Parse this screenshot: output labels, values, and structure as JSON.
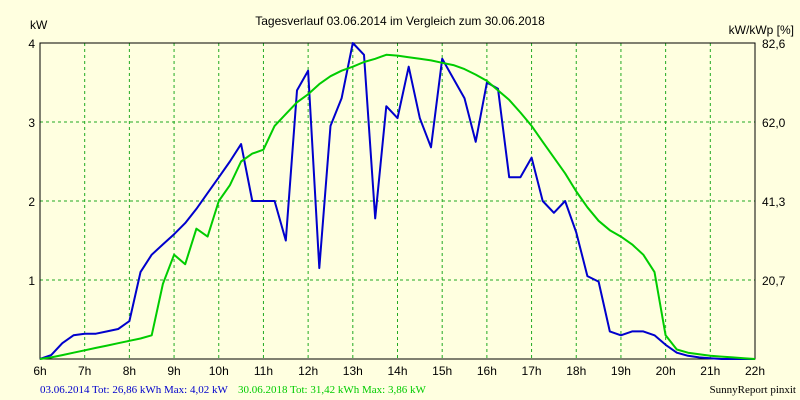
{
  "chart_data": {
    "type": "line",
    "title": "Tagesverlauf 03.06.2014 im Vergleich zum 30.06.2018",
    "ylabel_left": "kW",
    "ylabel_right": "kW/kWp [%]",
    "ylim": [
      0,
      4
    ],
    "xlim": [
      6,
      22
    ],
    "x_ticks": [
      "6h",
      "7h",
      "8h",
      "9h",
      "10h",
      "11h",
      "12h",
      "13h",
      "14h",
      "15h",
      "16h",
      "17h",
      "18h",
      "19h",
      "20h",
      "21h",
      "22h"
    ],
    "y_ticks_left": [
      "1",
      "2",
      "3",
      "4"
    ],
    "y_ticks_right": [
      "20,7",
      "41,3",
      "62,0",
      "82,6"
    ],
    "grid": true,
    "series": [
      {
        "name": "03.06.2014",
        "color": "#0000cc",
        "x": [
          6,
          6.25,
          6.5,
          6.75,
          7,
          7.25,
          7.5,
          7.75,
          8,
          8.25,
          8.5,
          8.75,
          9,
          9.25,
          9.5,
          9.75,
          10,
          10.25,
          10.5,
          10.75,
          11,
          11.25,
          11.5,
          11.75,
          12,
          12.25,
          12.5,
          12.75,
          13,
          13.25,
          13.5,
          13.75,
          14,
          14.25,
          14.5,
          14.75,
          15,
          15.25,
          15.5,
          15.75,
          16,
          16.25,
          16.5,
          16.75,
          17,
          17.25,
          17.5,
          17.75,
          18,
          18.25,
          18.5,
          18.75,
          19,
          19.25,
          19.5,
          19.75,
          20,
          20.25,
          20.5,
          20.75,
          21,
          21.25,
          21.5,
          21.75,
          22
        ],
        "y": [
          0,
          0.05,
          0.2,
          0.3,
          0.32,
          0.32,
          0.35,
          0.38,
          0.48,
          1.1,
          1.32,
          1.45,
          1.58,
          1.72,
          1.9,
          2.1,
          2.3,
          2.5,
          2.72,
          2.0,
          2.0,
          2.0,
          1.5,
          3.4,
          3.65,
          1.15,
          2.95,
          3.3,
          4.0,
          3.85,
          1.78,
          3.2,
          3.05,
          3.7,
          3.05,
          2.68,
          3.8,
          3.55,
          3.3,
          2.75,
          3.5,
          3.42,
          2.3,
          2.3,
          2.55,
          2.0,
          1.85,
          2.0,
          1.6,
          1.05,
          0.98,
          0.35,
          0.3,
          0.35,
          0.35,
          0.3,
          0.18,
          0.08,
          0.04,
          0.02,
          0.01,
          0,
          0,
          0,
          0
        ]
      },
      {
        "name": "30.06.2018",
        "color": "#00cc00",
        "x": [
          6,
          6.25,
          6.5,
          6.75,
          7,
          7.25,
          7.5,
          7.75,
          8,
          8.25,
          8.5,
          8.75,
          9,
          9.25,
          9.5,
          9.75,
          10,
          10.25,
          10.5,
          10.75,
          11,
          11.25,
          11.5,
          11.75,
          12,
          12.25,
          12.5,
          12.75,
          13,
          13.25,
          13.5,
          13.75,
          14,
          14.25,
          14.5,
          14.75,
          15,
          15.25,
          15.5,
          15.75,
          16,
          16.25,
          16.5,
          16.75,
          17,
          17.25,
          17.5,
          17.75,
          18,
          18.25,
          18.5,
          18.75,
          19,
          19.25,
          19.5,
          19.75,
          20,
          20.25,
          20.5,
          20.75,
          21,
          21.25,
          21.5,
          21.75,
          22
        ],
        "y": [
          0,
          0.02,
          0.05,
          0.08,
          0.11,
          0.14,
          0.17,
          0.2,
          0.23,
          0.26,
          0.3,
          0.95,
          1.32,
          1.2,
          1.65,
          1.55,
          2.0,
          2.2,
          2.5,
          2.6,
          2.65,
          2.95,
          3.1,
          3.25,
          3.35,
          3.48,
          3.58,
          3.65,
          3.7,
          3.76,
          3.8,
          3.85,
          3.84,
          3.82,
          3.8,
          3.78,
          3.75,
          3.72,
          3.67,
          3.6,
          3.52,
          3.4,
          3.28,
          3.12,
          2.95,
          2.75,
          2.55,
          2.35,
          2.12,
          1.92,
          1.75,
          1.63,
          1.55,
          1.45,
          1.32,
          1.1,
          0.3,
          0.12,
          0.08,
          0.06,
          0.04,
          0.03,
          0.02,
          0.01,
          0
        ]
      }
    ]
  },
  "footer": {
    "series1_text": "03.06.2014 Tot: 26,86 kWh Max: 4,02 kW",
    "series2_text": "30.06.2018 Tot: 31,42 kWh Max: 3,86 kW",
    "brand": "SunnyReport pinxit"
  }
}
